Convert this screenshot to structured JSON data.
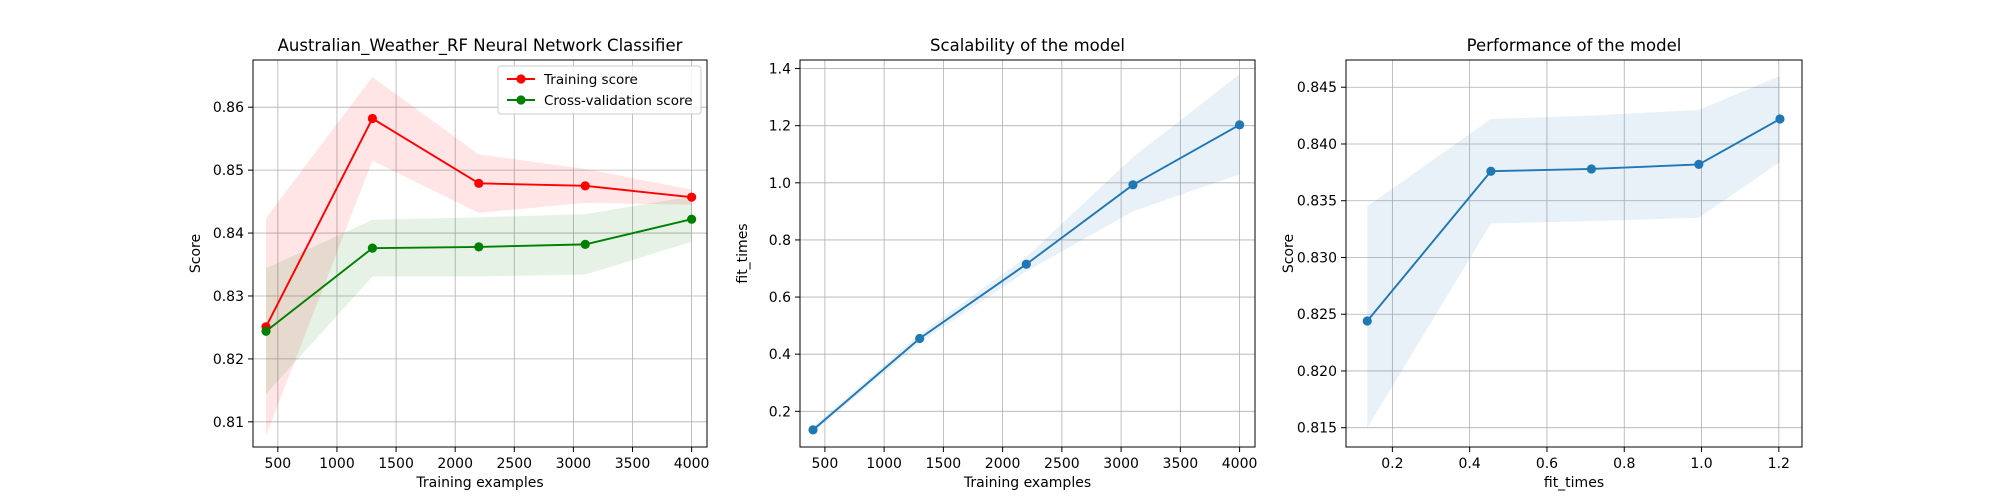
{
  "chart_data": [
    {
      "type": "line",
      "title": "Australian_Weather_RF Neural Network Classifier",
      "xlabel": "Training examples",
      "ylabel": "Score",
      "xlim": [
        290,
        4130
      ],
      "ylim": [
        0.806,
        0.8675
      ],
      "xticks": [
        500,
        1000,
        1500,
        2000,
        2500,
        3000,
        3500,
        4000
      ],
      "yticks": [
        0.81,
        0.82,
        0.83,
        0.84,
        0.85,
        0.86
      ],
      "grid": true,
      "legend_position": "top-right",
      "series": [
        {
          "name": "Training score",
          "color": "#ff0000",
          "x": [
            400,
            1300,
            2200,
            3100,
            4000
          ],
          "y": [
            0.8251,
            0.8582,
            0.8479,
            0.8475,
            0.8457
          ],
          "band_lower": [
            0.8078,
            0.8515,
            0.8432,
            0.8448,
            0.8445
          ],
          "band_upper": [
            0.8424,
            0.8648,
            0.8525,
            0.8502,
            0.8469
          ],
          "band_color": "#ff0000"
        },
        {
          "name": "Cross-validation score",
          "color": "#008000",
          "x": [
            400,
            1300,
            2200,
            3100,
            4000
          ],
          "y": [
            0.8244,
            0.8376,
            0.8378,
            0.8382,
            0.8422
          ],
          "band_lower": [
            0.8144,
            0.8331,
            0.8331,
            0.8334,
            0.8386
          ],
          "band_upper": [
            0.8344,
            0.8421,
            0.8425,
            0.843,
            0.8458
          ],
          "band_color": "#008000"
        }
      ]
    },
    {
      "type": "line",
      "title": "Scalability of the model",
      "xlabel": "Training examples",
      "ylabel": "fit_times",
      "xlim": [
        290,
        4130
      ],
      "ylim": [
        0.075,
        1.43
      ],
      "xticks": [
        500,
        1000,
        1500,
        2000,
        2500,
        3000,
        3500,
        4000
      ],
      "yticks": [
        0.2,
        0.4,
        0.6,
        0.8,
        1.0,
        1.2,
        1.4
      ],
      "grid": true,
      "series": [
        {
          "color": "#1f77b4",
          "x": [
            400,
            1300,
            2200,
            3100,
            4000
          ],
          "y": [
            0.135,
            0.455,
            0.715,
            0.993,
            1.203
          ],
          "band_lower": [
            0.125,
            0.44,
            0.69,
            0.9,
            1.03
          ],
          "band_upper": [
            0.145,
            0.47,
            0.74,
            1.09,
            1.38
          ],
          "band_color": "#1f77b4"
        }
      ]
    },
    {
      "type": "line",
      "title": "Performance of the model",
      "xlabel": "fit_times",
      "ylabel": "Score",
      "xlim": [
        0.08,
        1.26
      ],
      "ylim": [
        0.8133,
        0.8474
      ],
      "xticks": [
        0.2,
        0.4,
        0.6,
        0.8,
        1.0,
        1.2
      ],
      "yticks": [
        0.815,
        0.82,
        0.825,
        0.83,
        0.835,
        0.84,
        0.845
      ],
      "grid": true,
      "series": [
        {
          "color": "#1f77b4",
          "x": [
            0.135,
            0.455,
            0.715,
            0.993,
            1.203
          ],
          "y": [
            0.8244,
            0.8376,
            0.8378,
            0.8382,
            0.8422
          ],
          "band_lower": [
            0.815,
            0.833,
            0.8332,
            0.8335,
            0.8384
          ],
          "band_upper": [
            0.8345,
            0.8422,
            0.8425,
            0.843,
            0.846
          ],
          "band_color": "#1f77b4"
        }
      ]
    }
  ]
}
